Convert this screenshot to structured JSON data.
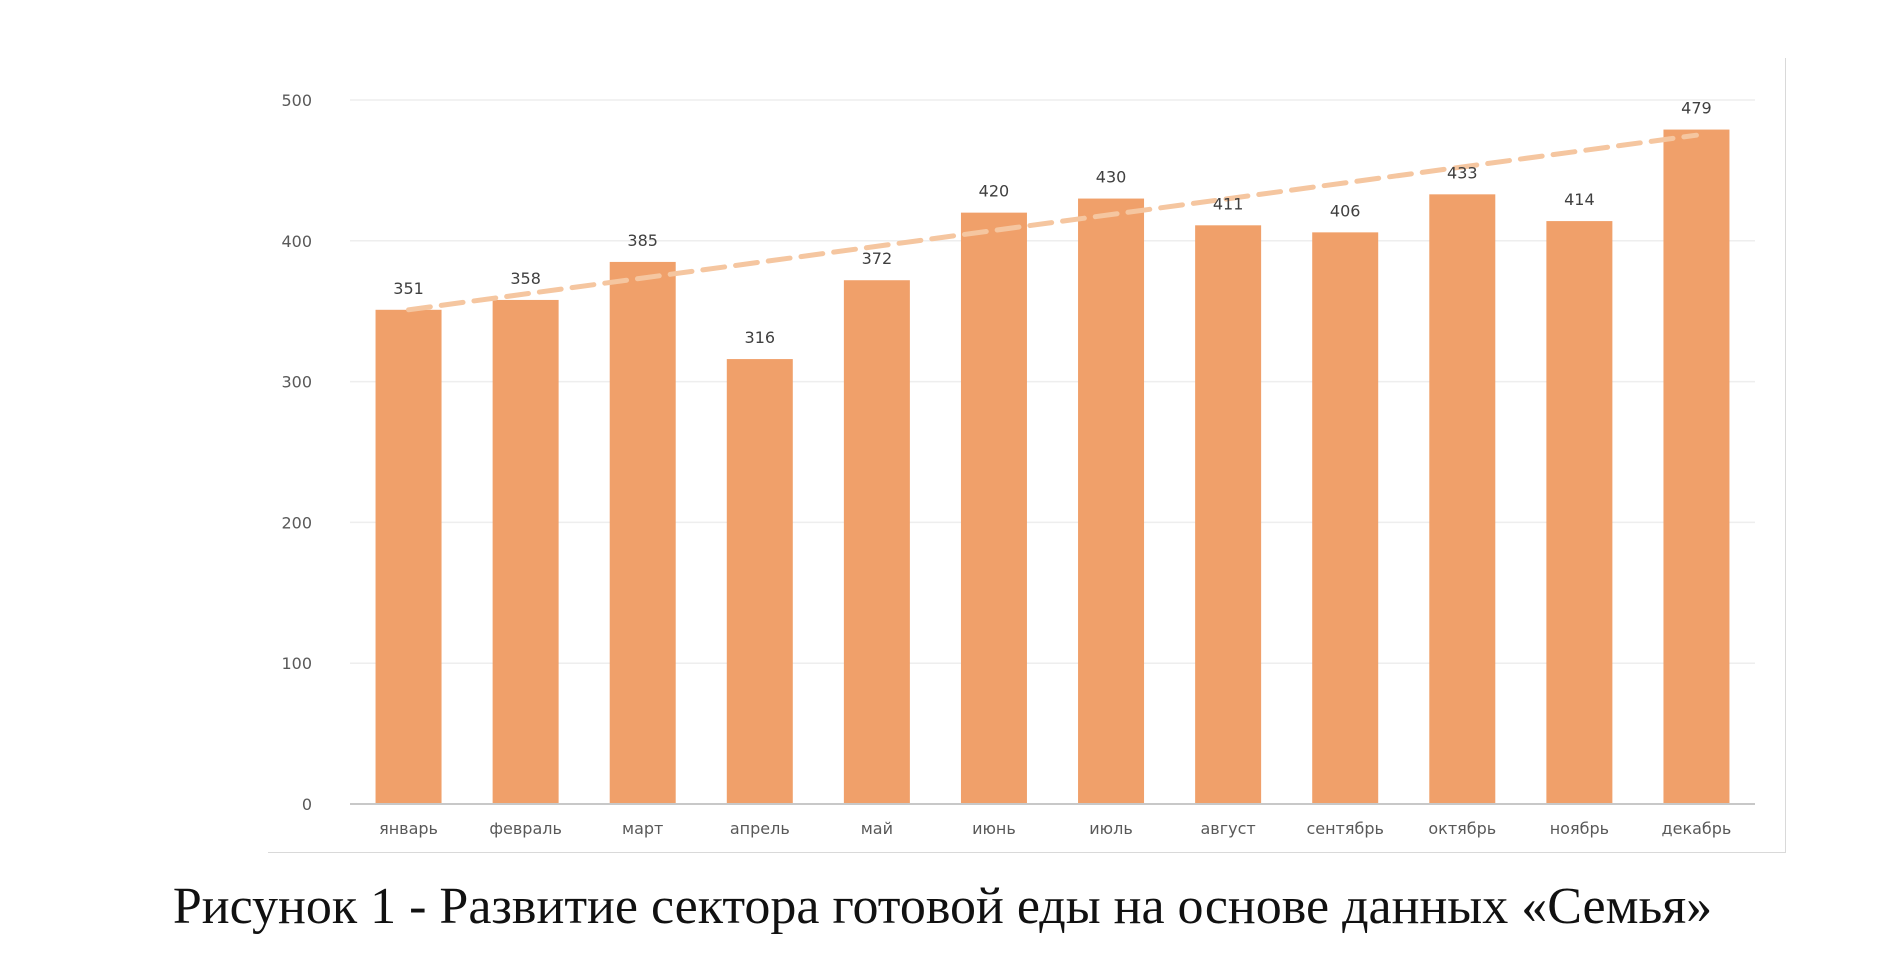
{
  "chart_data": {
    "type": "bar",
    "title": "",
    "xlabel": "",
    "ylabel": "",
    "categories": [
      "январь",
      "февраль",
      "март",
      "апрель",
      "май",
      "июнь",
      "июль",
      "август",
      "сентябрь",
      "октябрь",
      "ноябрь",
      "декабрь"
    ],
    "values": [
      351,
      358,
      385,
      316,
      372,
      420,
      430,
      411,
      406,
      433,
      414,
      479
    ],
    "data_labels": [
      "351",
      "358",
      "385",
      "316",
      "372",
      "420",
      "430",
      "411",
      "406",
      "433",
      "414",
      "479"
    ],
    "ylim": [
      0,
      500
    ],
    "yticks": [
      0,
      100,
      200,
      300,
      400,
      500
    ],
    "ytick_labels": [
      "0",
      "100",
      "200",
      "300",
      "400",
      "500"
    ],
    "grid": true,
    "legend": "none",
    "trendline": {
      "type": "linear",
      "style": "dashed",
      "start_value": 351,
      "end_value": 475
    },
    "colors": {
      "bar": "#f0a06a",
      "trendline": "#f5c6a0",
      "grid": "#eeeeee",
      "axis": "#c8c8c8"
    }
  },
  "caption": "Рисунок 1 - Развитие сектора готовой еды на основе данных «Семья»"
}
